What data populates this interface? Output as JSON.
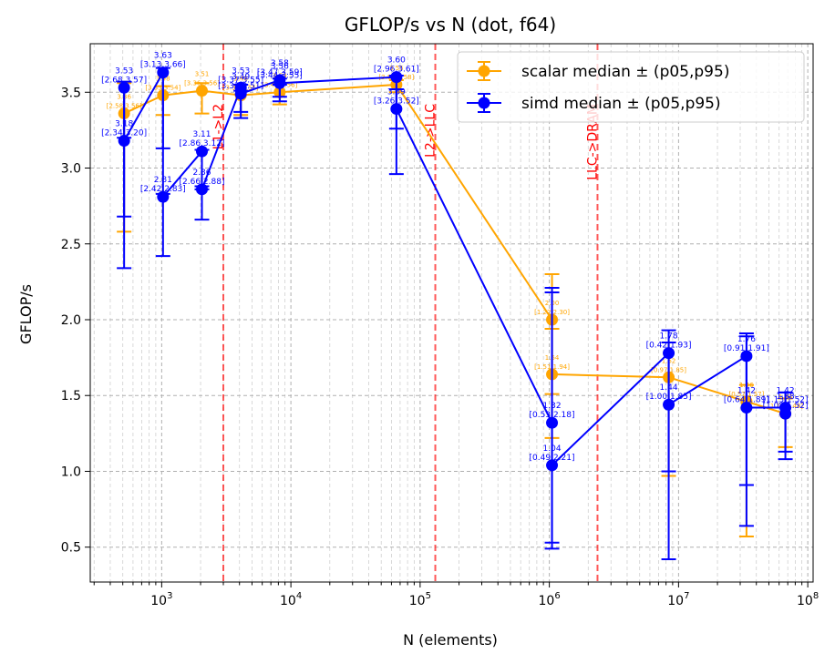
{
  "chart_data": {
    "type": "line",
    "title": "GFLOP/s vs N (dot, f64)",
    "xlabel": "N (elements)",
    "ylabel": "GFLOP/s",
    "xscale": "log",
    "xlim": [
      280,
      110000000
    ],
    "ylim": [
      0.27,
      3.82
    ],
    "yticks": [
      "0.5",
      "1.0",
      "1.5",
      "2.0",
      "2.5",
      "3.0",
      "3.5"
    ],
    "xtick_exponents": [
      "3",
      "4",
      "5",
      "6",
      "7",
      "8"
    ],
    "xtick_base": "10",
    "grid": "on",
    "legend_position": "top-right",
    "vlines": [
      {
        "x": 3000,
        "label": "L1->L2"
      },
      {
        "x": 131072,
        "label": "L2->LLC"
      },
      {
        "x": 2359296,
        "label": "LLC->DRAM"
      }
    ],
    "series": [
      {
        "name": "scalar median ± (p05,p95)",
        "color": "#ffa500",
        "points": [
          {
            "x": 512,
            "y": 3.36,
            "lo": 2.58,
            "hi": 3.56,
            "label": "3.36",
            "ci": "[2.58,3.56]"
          },
          {
            "x": 1024,
            "y": 3.48,
            "lo": 3.35,
            "hi": 3.54,
            "label": "3.48",
            "ci": "[3.35,3.54]"
          },
          {
            "x": 2048,
            "y": 3.51,
            "lo": 3.36,
            "hi": 3.56,
            "label": "3.51",
            "ci": "[3.36,3.56]"
          },
          {
            "x": 4096,
            "y": 3.48,
            "lo": 3.35,
            "hi": 3.55,
            "label": "3.48",
            "ci": "[3.35,3.55]"
          },
          {
            "x": 8192,
            "y": 3.5,
            "lo": 3.42,
            "hi": 3.56,
            "label": "3.50",
            "ci": "[3.42,3.56]"
          },
          {
            "x": 65536,
            "y": 3.55,
            "lo": 3.5,
            "hi": 3.58,
            "label": "3.55",
            "ci": "[3.50,3.58]"
          },
          {
            "x": 1048576,
            "y": 2.0,
            "lo": 1.22,
            "hi": 2.3,
            "label": "2.00",
            "ci": "[1.22,2.30]"
          },
          {
            "x": 1048576,
            "y": 1.64,
            "lo": 1.51,
            "hi": 1.94,
            "label": "1.64",
            "ci": "[1.51,1.94]"
          },
          {
            "x": 8388608,
            "y": 1.62,
            "lo": 0.97,
            "hi": 1.85,
            "label": "1.62",
            "ci": "[0.97,1.85]"
          },
          {
            "x": 33554432,
            "y": 1.46,
            "lo": 0.57,
            "hi": 1.57,
            "label": "1.46",
            "ci": "[0.57,1.57]"
          },
          {
            "x": 67108864,
            "y": 1.38,
            "lo": 1.16,
            "hi": 1.48,
            "label": "1.38",
            "ci": "[1.16,1.48]"
          }
        ]
      },
      {
        "name": "simd median ± (p05,p95)",
        "color": "#0000ff",
        "points": [
          {
            "x": 512,
            "y": 3.53,
            "lo": 2.68,
            "hi": 3.57,
            "label": "3.53",
            "ci": "[2.68,3.57]"
          },
          {
            "x": 512,
            "y": 3.18,
            "lo": 2.34,
            "hi": 3.2,
            "label": "3.18",
            "ci": "[2.34,3.20]"
          },
          {
            "x": 1024,
            "y": 3.63,
            "lo": 3.13,
            "hi": 3.66,
            "label": "3.63",
            "ci": "[3.13,3.66]"
          },
          {
            "x": 1024,
            "y": 2.81,
            "lo": 2.42,
            "hi": 2.83,
            "label": "2.81",
            "ci": "[2.42,2.83]"
          },
          {
            "x": 2048,
            "y": 3.11,
            "lo": 2.86,
            "hi": 3.12,
            "label": "3.11",
            "ci": "[2.86,3.12]"
          },
          {
            "x": 2048,
            "y": 2.86,
            "lo": 2.66,
            "hi": 2.88,
            "label": "2.86",
            "ci": "[2.66,2.88]"
          },
          {
            "x": 4096,
            "y": 3.53,
            "lo": 3.37,
            "hi": 3.55,
            "label": "3.53",
            "ci": "[3.37,3.55]"
          },
          {
            "x": 4096,
            "y": 3.49,
            "lo": 3.33,
            "hi": 3.51,
            "label": "3.49",
            "ci": "[3.33,3.51]"
          },
          {
            "x": 8192,
            "y": 3.58,
            "lo": 3.47,
            "hi": 3.59,
            "label": "3.58",
            "ci": "[3.47,3.59]"
          },
          {
            "x": 8192,
            "y": 3.56,
            "lo": 3.44,
            "hi": 3.55,
            "label": "3.56",
            "ci": "[3.44,3.55]"
          },
          {
            "x": 65536,
            "y": 3.6,
            "lo": 2.96,
            "hi": 3.61,
            "label": "3.60",
            "ci": "[2.96,3.61]"
          },
          {
            "x": 65536,
            "y": 3.39,
            "lo": 3.26,
            "hi": 3.52,
            "label": "3.39",
            "ci": "[3.26,3.52]"
          },
          {
            "x": 1048576,
            "y": 1.32,
            "lo": 0.53,
            "hi": 2.18,
            "label": "1.32",
            "ci": "[0.53,2.18]"
          },
          {
            "x": 1048576,
            "y": 1.04,
            "lo": 0.49,
            "hi": 2.21,
            "label": "1.04",
            "ci": "[0.49,2.21]"
          },
          {
            "x": 8388608,
            "y": 1.78,
            "lo": 0.42,
            "hi": 1.93,
            "label": "1.78",
            "ci": "[0.42,1.93]"
          },
          {
            "x": 8388608,
            "y": 1.44,
            "lo": 1.0,
            "hi": 1.85,
            "label": "1.44",
            "ci": "[1.00,1.85]"
          },
          {
            "x": 33554432,
            "y": 1.76,
            "lo": 0.91,
            "hi": 1.91,
            "label": "1.76",
            "ci": "[0.91,1.91]"
          },
          {
            "x": 33554432,
            "y": 1.42,
            "lo": 0.64,
            "hi": 1.89,
            "label": "1.42",
            "ci": "[0.64,1.89]"
          },
          {
            "x": 67108864,
            "y": 1.42,
            "lo": 1.13,
            "hi": 1.52,
            "label": "1.42",
            "ci": "[1.13,1.52]"
          },
          {
            "x": 67108864,
            "y": 1.38,
            "lo": 1.08,
            "hi": 1.52,
            "label": "1.38",
            "ci": "[1.08,1.52]"
          }
        ]
      }
    ]
  }
}
